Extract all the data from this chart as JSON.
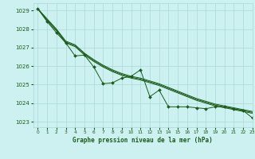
{
  "title": "Graphe pression niveau de la mer (hPa)",
  "bg_color": "#cdf0f0",
  "grid_color": "#aad8d8",
  "line_color": "#1a5c1a",
  "marker_color": "#1a5c1a",
  "xlim": [
    -0.5,
    23
  ],
  "ylim": [
    1022.7,
    1029.4
  ],
  "yticks": [
    1023,
    1024,
    1025,
    1026,
    1027,
    1028,
    1029
  ],
  "xticks": [
    0,
    1,
    2,
    3,
    4,
    5,
    6,
    7,
    8,
    9,
    10,
    11,
    12,
    13,
    14,
    15,
    16,
    17,
    18,
    19,
    20,
    21,
    22,
    23
  ],
  "smooth1": {
    "x": [
      0,
      1,
      2,
      3,
      4,
      5,
      6,
      7,
      8,
      9,
      10,
      11,
      12,
      13,
      14,
      15,
      16,
      17,
      18,
      19,
      20,
      21,
      22,
      23
    ],
    "y": [
      1029.1,
      1028.55,
      1028.0,
      1027.35,
      1027.15,
      1026.7,
      1026.35,
      1026.05,
      1025.8,
      1025.6,
      1025.45,
      1025.35,
      1025.2,
      1025.05,
      1024.85,
      1024.65,
      1024.45,
      1024.25,
      1024.1,
      1023.95,
      1023.85,
      1023.75,
      1023.65,
      1023.55
    ]
  },
  "smooth2": {
    "x": [
      0,
      1,
      2,
      3,
      4,
      5,
      6,
      7,
      8,
      9,
      10,
      11,
      12,
      13,
      14,
      15,
      16,
      17,
      18,
      19,
      20,
      21,
      22,
      23
    ],
    "y": [
      1029.1,
      1028.5,
      1027.95,
      1027.3,
      1027.1,
      1026.65,
      1026.3,
      1026.0,
      1025.75,
      1025.55,
      1025.4,
      1025.3,
      1025.15,
      1025.0,
      1024.8,
      1024.6,
      1024.4,
      1024.2,
      1024.05,
      1023.9,
      1023.8,
      1023.7,
      1023.6,
      1023.5
    ]
  },
  "smooth3": {
    "x": [
      0,
      1,
      2,
      3,
      4,
      5,
      6,
      7,
      8,
      9,
      10,
      11,
      12,
      13,
      14,
      15,
      16,
      17,
      18,
      19,
      20,
      21,
      22,
      23
    ],
    "y": [
      1029.1,
      1028.45,
      1027.9,
      1027.25,
      1027.05,
      1026.6,
      1026.25,
      1025.95,
      1025.7,
      1025.5,
      1025.35,
      1025.25,
      1025.1,
      1024.95,
      1024.75,
      1024.55,
      1024.35,
      1024.15,
      1024.0,
      1023.85,
      1023.75,
      1023.65,
      1023.55,
      1023.45
    ]
  },
  "series_bumpy": {
    "x": [
      0,
      1,
      2,
      3,
      4,
      5,
      6,
      7,
      8,
      9,
      10,
      11,
      12,
      13,
      14,
      15,
      16,
      17,
      18,
      19,
      20,
      21,
      22,
      23
    ],
    "y": [
      1029.1,
      1028.4,
      1027.8,
      1027.25,
      1026.55,
      1026.6,
      1025.95,
      1025.05,
      1025.1,
      1025.35,
      1025.45,
      1025.8,
      1024.35,
      1024.7,
      1023.8,
      1023.8,
      1023.8,
      1023.75,
      1023.7,
      1023.8,
      1023.8,
      1023.7,
      1023.6,
      1023.2
    ]
  }
}
